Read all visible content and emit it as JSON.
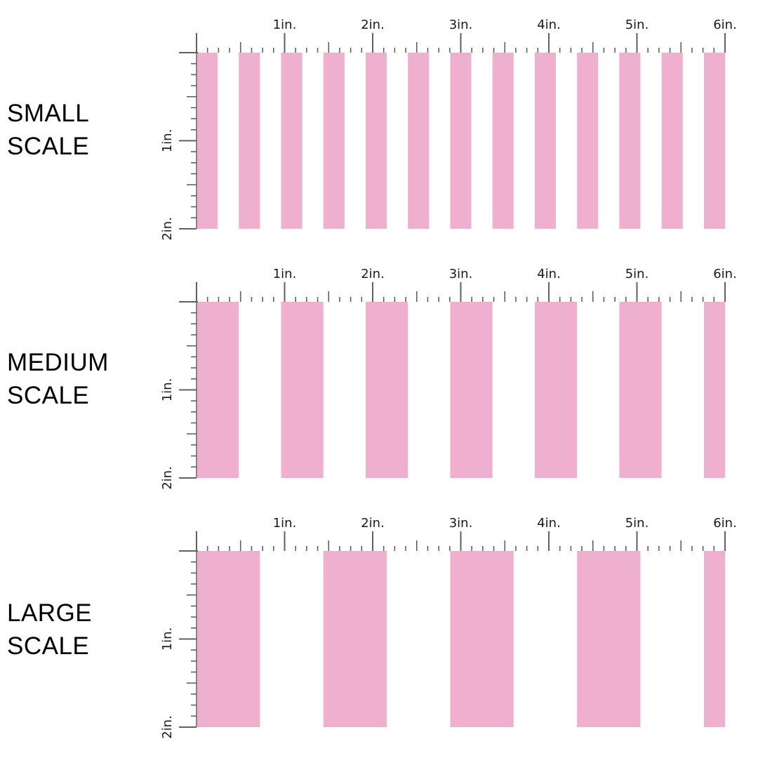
{
  "colors": {
    "stripe": "#efb0d0",
    "tick": "#606060",
    "text": "#1a1a1a",
    "background": "#ffffff"
  },
  "ruler": {
    "horizontal_labels": [
      "1in.",
      "2in.",
      "3in.",
      "4in.",
      "5in.",
      "6in."
    ],
    "vertical_labels": [
      "1in.",
      "2in."
    ],
    "subdivisions_per_inch": 8
  },
  "sections": [
    {
      "id": "small",
      "label_line1": "SMALL",
      "label_line2": "SCALE",
      "stripe_width_in": 0.24,
      "stripe_period_in": 0.48,
      "stripe_count": 13
    },
    {
      "id": "medium",
      "label_line1": "MEDIUM",
      "label_line2": "SCALE",
      "stripe_width_in": 0.48,
      "stripe_period_in": 0.96,
      "stripe_count": 7
    },
    {
      "id": "large",
      "label_line1": "LARGE",
      "label_line2": "SCALE",
      "stripe_width_in": 0.72,
      "stripe_period_in": 1.44,
      "stripe_count": 5
    }
  ]
}
